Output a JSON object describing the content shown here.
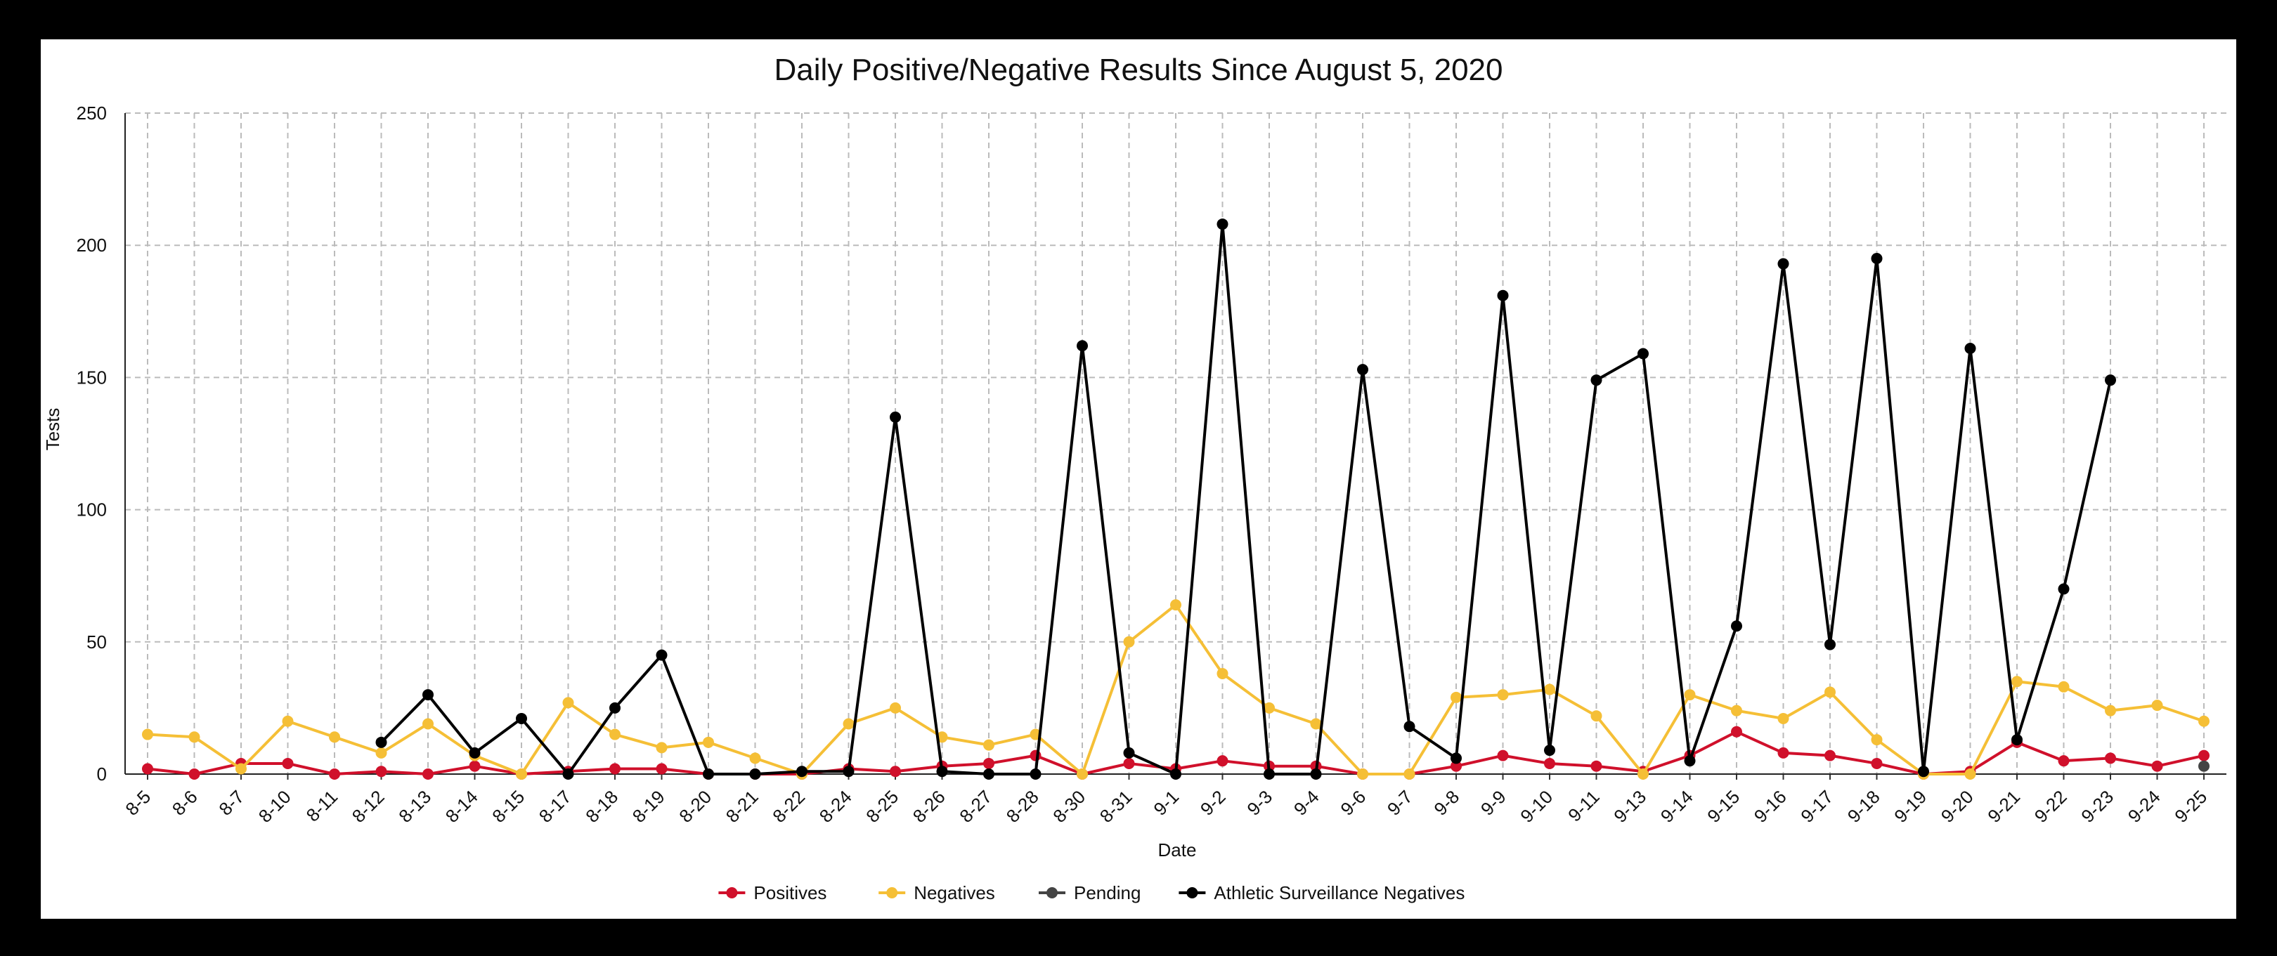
{
  "chart_data": {
    "type": "line",
    "title": "Daily Positive/Negative Results Since August 5, 2020",
    "xlabel": "Date",
    "ylabel": "Tests",
    "ylim": [
      0,
      250
    ],
    "yticks": [
      0,
      50,
      100,
      150,
      200,
      250
    ],
    "grid": true,
    "legend_position": "bottom",
    "categories": [
      "8-5",
      "8-6",
      "8-7",
      "8-10",
      "8-11",
      "8-12",
      "8-13",
      "8-14",
      "8-15",
      "8-17",
      "8-18",
      "8-19",
      "8-20",
      "8-21",
      "8-22",
      "8-24",
      "8-25",
      "8-26",
      "8-27",
      "8-28",
      "8-30",
      "8-31",
      "9-1",
      "9-2",
      "9-3",
      "9-4",
      "9-6",
      "9-7",
      "9-8",
      "9-9",
      "9-10",
      "9-11",
      "9-13",
      "9-14",
      "9-15",
      "9-16",
      "9-17",
      "9-18",
      "9-19",
      "9-20",
      "9-21",
      "9-22",
      "9-23",
      "9-24",
      "9-25"
    ],
    "series": [
      {
        "name": "Positives",
        "color": "#d0102b",
        "values": [
          2,
          0,
          4,
          4,
          0,
          1,
          0,
          3,
          0,
          1,
          2,
          2,
          0,
          0,
          0,
          2,
          1,
          3,
          4,
          7,
          0,
          4,
          2,
          5,
          3,
          3,
          0,
          0,
          3,
          7,
          4,
          3,
          1,
          7,
          16,
          8,
          7,
          4,
          0,
          1,
          12,
          5,
          6,
          3,
          7
        ]
      },
      {
        "name": "Negatives",
        "color": "#f5bf36",
        "values": [
          15,
          14,
          2,
          20,
          14,
          8,
          19,
          7,
          0,
          27,
          15,
          10,
          12,
          6,
          0,
          19,
          25,
          14,
          11,
          15,
          0,
          50,
          64,
          38,
          25,
          19,
          0,
          0,
          29,
          30,
          32,
          22,
          0,
          30,
          24,
          21,
          31,
          13,
          0,
          0,
          35,
          33,
          24,
          26,
          20
        ]
      },
      {
        "name": "Pending",
        "color": "#444444",
        "values": [
          null,
          null,
          null,
          null,
          null,
          null,
          null,
          null,
          null,
          null,
          null,
          null,
          null,
          null,
          null,
          null,
          null,
          null,
          null,
          null,
          null,
          null,
          null,
          null,
          null,
          null,
          null,
          null,
          null,
          null,
          null,
          null,
          null,
          null,
          null,
          null,
          null,
          null,
          null,
          null,
          null,
          null,
          null,
          null,
          3
        ]
      },
      {
        "name": "Athletic Surveillance Negatives",
        "color": "#000000",
        "values": [
          null,
          null,
          null,
          null,
          null,
          12,
          30,
          8,
          21,
          0,
          25,
          45,
          0,
          0,
          1,
          1,
          135,
          1,
          0,
          0,
          162,
          8,
          0,
          208,
          0,
          0,
          153,
          18,
          6,
          181,
          9,
          149,
          159,
          5,
          56,
          193,
          49,
          195,
          1,
          161,
          13,
          70,
          149,
          null,
          null
        ]
      }
    ]
  }
}
